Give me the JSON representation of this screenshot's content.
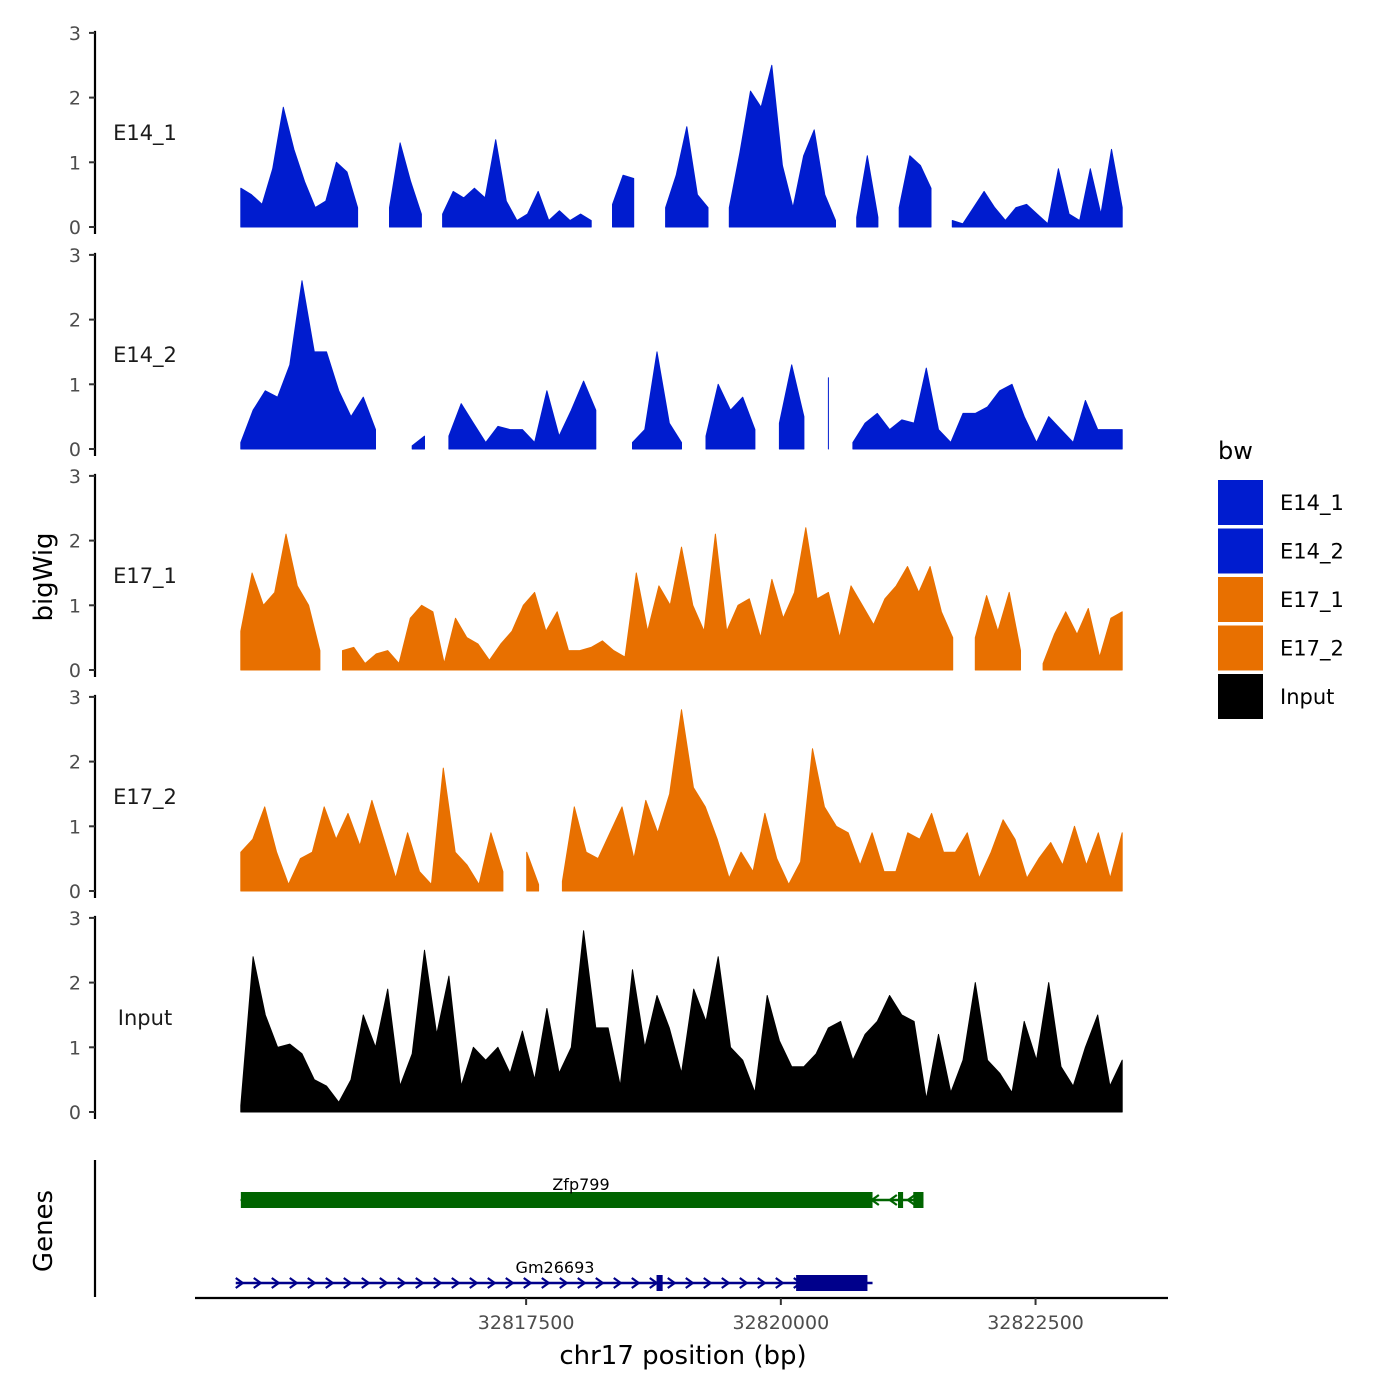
{
  "chart_data": {
    "type": "area",
    "title": "",
    "ylabel": "bigWig",
    "xlabel": "chr17 position (bp)",
    "chromosome": "chr17",
    "xlim": [
      32814250,
      32823800
    ],
    "x_ticks": [
      32817500,
      32820000,
      32822500
    ],
    "x_tick_labels": [
      "32817500",
      "32820000",
      "32822500"
    ],
    "ylim": [
      0,
      3
    ],
    "y_ticks": [
      0,
      1,
      2,
      3
    ],
    "y_tick_labels": [
      "0",
      "1",
      "2",
      "3"
    ],
    "x_start": 32814700,
    "x_end": 32823350,
    "legend": {
      "title": "bw",
      "position": "right",
      "entries": [
        {
          "name": "E14_1",
          "color": "#001ccf"
        },
        {
          "name": "E14_2",
          "color": "#001ccf"
        },
        {
          "name": "E17_1",
          "color": "#e87000"
        },
        {
          "name": "E17_2",
          "color": "#e87000"
        },
        {
          "name": "Input",
          "color": "#000000"
        }
      ]
    },
    "series": [
      {
        "name": "E14_1",
        "color": "#001ccf",
        "values": [
          0.6,
          0.5,
          0.35,
          0.9,
          1.85,
          1.2,
          0.7,
          0.3,
          0.4,
          1.0,
          0.85,
          0.3,
          null,
          null,
          0.3,
          1.3,
          0.7,
          0.2,
          null,
          0.2,
          0.55,
          0.45,
          0.6,
          0.45,
          1.35,
          0.4,
          0.1,
          0.2,
          0.55,
          0.1,
          0.25,
          0.1,
          0.2,
          0.1,
          null,
          0.35,
          0.8,
          0.75,
          null,
          null,
          0.3,
          0.8,
          1.55,
          0.5,
          0.3,
          null,
          0.3,
          1.15,
          2.1,
          1.85,
          2.5,
          0.95,
          0.3,
          1.1,
          1.5,
          0.5,
          0.1,
          null,
          0.15,
          1.1,
          0.15,
          null,
          0.3,
          1.1,
          0.95,
          0.6,
          null,
          0.1,
          0.05,
          0.3,
          0.55,
          0.3,
          0.1,
          0.3,
          0.35,
          0.2,
          0.05,
          0.9,
          0.2,
          0.1,
          0.9,
          0.2,
          1.2,
          0.3
        ]
      },
      {
        "name": "E14_2",
        "color": "#001ccf",
        "values": [
          0.1,
          0.6,
          0.9,
          0.8,
          1.3,
          2.6,
          1.5,
          1.5,
          0.9,
          0.5,
          0.8,
          0.3,
          null,
          null,
          0.05,
          0.2,
          null,
          0.2,
          0.7,
          0.4,
          0.1,
          0.35,
          0.3,
          0.3,
          0.1,
          0.9,
          0.2,
          0.6,
          1.05,
          0.6,
          null,
          null,
          0.1,
          0.3,
          1.5,
          0.4,
          0.1,
          null,
          0.2,
          1.0,
          0.6,
          0.8,
          0.3,
          null,
          0.4,
          1.3,
          0.5,
          null,
          1.1,
          null,
          0.1,
          0.4,
          0.55,
          0.3,
          0.45,
          0.4,
          1.25,
          0.3,
          0.1,
          0.55,
          0.55,
          0.65,
          0.9,
          1.0,
          0.5,
          0.1,
          0.5,
          0.3,
          0.1,
          0.75,
          0.3,
          0.3,
          0.3
        ]
      },
      {
        "name": "E17_1",
        "color": "#e87000",
        "values": [
          0.6,
          1.5,
          1.0,
          1.2,
          2.1,
          1.3,
          1.0,
          0.3,
          null,
          0.3,
          0.35,
          0.1,
          0.25,
          0.3,
          0.1,
          0.8,
          1.0,
          0.9,
          0.1,
          0.8,
          0.5,
          0.4,
          0.15,
          0.4,
          0.6,
          1.0,
          1.2,
          0.6,
          0.9,
          0.3,
          0.3,
          0.35,
          0.45,
          0.3,
          0.2,
          1.5,
          0.6,
          1.3,
          1.0,
          1.9,
          1.0,
          0.6,
          2.1,
          0.6,
          1.0,
          1.1,
          0.5,
          1.4,
          0.8,
          1.2,
          2.2,
          1.1,
          1.2,
          0.5,
          1.3,
          1.0,
          0.7,
          1.1,
          1.3,
          1.6,
          1.2,
          1.6,
          0.9,
          0.5,
          null,
          0.5,
          1.15,
          0.6,
          1.2,
          0.3,
          null,
          0.1,
          0.55,
          0.9,
          0.55,
          0.95,
          0.2,
          0.8,
          0.9
        ]
      },
      {
        "name": "E17_2",
        "color": "#e87000",
        "values": [
          0.6,
          0.8,
          1.3,
          0.6,
          0.1,
          0.5,
          0.6,
          1.3,
          0.8,
          1.2,
          0.7,
          1.4,
          0.8,
          0.2,
          0.9,
          0.3,
          0.1,
          1.9,
          0.6,
          0.4,
          0.1,
          0.9,
          0.3,
          null,
          0.6,
          0.1,
          null,
          0.15,
          1.3,
          0.6,
          0.5,
          0.9,
          1.3,
          0.5,
          1.4,
          0.9,
          1.5,
          2.8,
          1.6,
          1.3,
          0.8,
          0.2,
          0.6,
          0.3,
          1.2,
          0.5,
          0.1,
          0.45,
          2.2,
          1.3,
          1.0,
          0.9,
          0.4,
          0.9,
          0.3,
          0.3,
          0.9,
          0.8,
          1.2,
          0.6,
          0.6,
          0.9,
          0.2,
          0.6,
          1.1,
          0.8,
          0.2,
          0.5,
          0.75,
          0.4,
          1.0,
          0.4,
          0.9,
          0.2,
          0.9
        ]
      },
      {
        "name": "Input",
        "color": "#000000",
        "values": [
          0.1,
          2.4,
          1.5,
          1.0,
          1.05,
          0.9,
          0.5,
          0.4,
          0.15,
          0.5,
          1.5,
          1.0,
          1.9,
          0.4,
          0.9,
          2.5,
          1.2,
          2.1,
          0.4,
          1.0,
          0.8,
          1.0,
          0.6,
          1.25,
          0.5,
          1.6,
          0.6,
          1.0,
          2.8,
          1.3,
          1.3,
          0.4,
          2.2,
          1.0,
          1.8,
          1.3,
          0.6,
          1.9,
          1.4,
          2.4,
          1.0,
          0.8,
          0.3,
          1.8,
          1.1,
          0.7,
          0.7,
          0.9,
          1.3,
          1.4,
          0.8,
          1.2,
          1.4,
          1.8,
          1.5,
          1.4,
          0.2,
          1.2,
          0.3,
          0.8,
          2.0,
          0.8,
          0.6,
          0.3,
          1.4,
          0.8,
          2.0,
          0.7,
          0.4,
          1.0,
          1.5,
          0.4,
          0.8
        ]
      }
    ],
    "genes": {
      "track_label": "Genes",
      "items": [
        {
          "name": "Zfp799",
          "strand": "-",
          "color": "#006400",
          "start": 32814700,
          "end": 32821400,
          "exons": [
            {
              "start": 32814700,
              "end": 32820900
            },
            {
              "start": 32821150,
              "end": 32821200
            },
            {
              "start": 32821300,
              "end": 32821400
            }
          ]
        },
        {
          "name": "Gm26693",
          "strand": "+",
          "color": "#00008b",
          "start": 32814650,
          "end": 32820900,
          "exons": [
            {
              "start": 32818780,
              "end": 32818840
            },
            {
              "start": 32820150,
              "end": 32820850
            }
          ]
        }
      ]
    }
  }
}
